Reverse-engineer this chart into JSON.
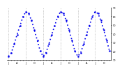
{
  "title": "",
  "months_labels": [
    "J",
    "",
    "",
    "A",
    "",
    "",
    "J",
    "",
    "",
    "O",
    "",
    "",
    "J",
    "",
    "",
    "A",
    "",
    "",
    "J",
    "",
    "",
    "O",
    "",
    "",
    "J",
    "",
    "",
    "A",
    "",
    "",
    "J",
    "",
    "",
    "O",
    "",
    ""
  ],
  "values": [
    14,
    18,
    28,
    39,
    49,
    59,
    65,
    63,
    55,
    44,
    32,
    20,
    14,
    18,
    28,
    39,
    49,
    59,
    65,
    63,
    55,
    44,
    32,
    20,
    14,
    18,
    28,
    39,
    49,
    59,
    65,
    63,
    55,
    44,
    32,
    20
  ],
  "ylim": [
    10,
    70
  ],
  "yticks": [
    10,
    20,
    30,
    40,
    50,
    60,
    70
  ],
  "ytick_labels": [
    "10",
    "20",
    "30",
    "40",
    "50",
    "60",
    "70"
  ],
  "n_points": 36,
  "line_color": "#0000EE",
  "line_width": 1.2,
  "marker_size": 1.5,
  "bg_color": "#ffffff",
  "grid_color": "#999999",
  "grid_style": ":"
}
